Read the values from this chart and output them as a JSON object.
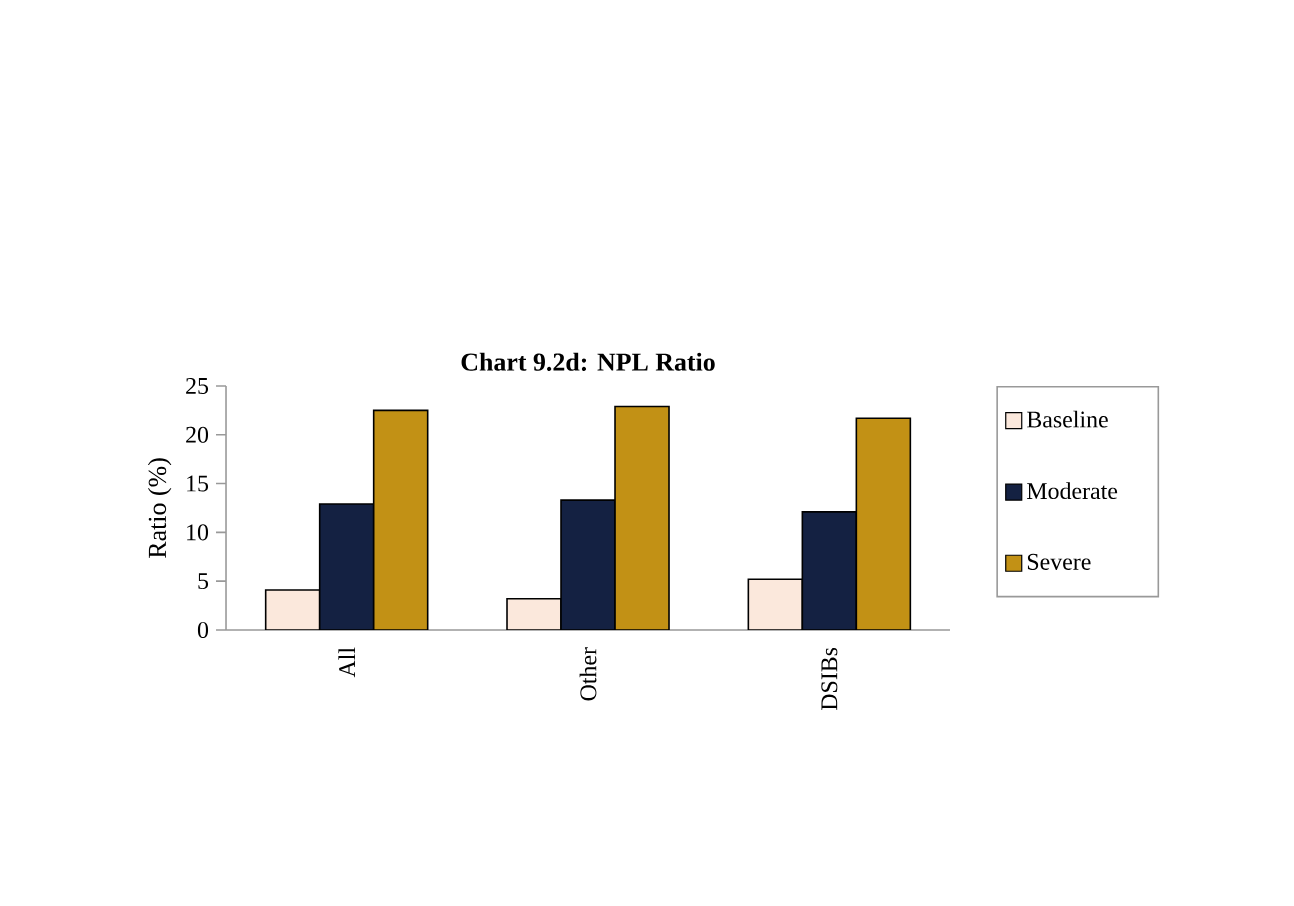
{
  "chart_data": {
    "type": "bar",
    "title": "Chart 9.2d: NPL Ratio",
    "ylabel": "Ratio (%)",
    "categories": [
      "All",
      "Other",
      "DSIBs"
    ],
    "series": [
      {
        "name": "Baseline",
        "color": "#fbe8dc",
        "values": [
          4.1,
          3.2,
          5.2
        ]
      },
      {
        "name": "Moderate",
        "color": "#142142",
        "values": [
          12.9,
          13.3,
          12.1
        ]
      },
      {
        "name": "Severe",
        "color": "#c29115",
        "values": [
          22.5,
          22.9,
          21.7
        ]
      }
    ],
    "ylim": [
      0,
      25
    ],
    "yticks": [
      0,
      5,
      10,
      15,
      20,
      25
    ],
    "legend": "right",
    "grid": false
  }
}
